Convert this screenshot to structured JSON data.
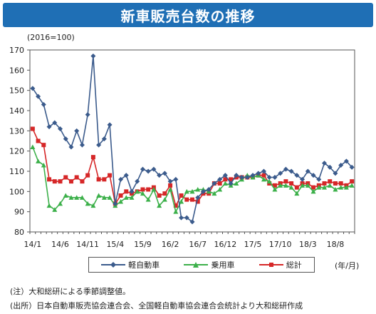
{
  "header": {
    "title": "新車販売台数の推移",
    "base_note": "(2016=100)",
    "title_color": "#1f6fb5"
  },
  "chart_data": {
    "type": "line",
    "ylim": [
      80,
      170
    ],
    "yticks": [
      80,
      90,
      100,
      110,
      120,
      130,
      140,
      150,
      160,
      170
    ],
    "x_tick_labels": [
      "14/1",
      "14/6",
      "14/11",
      "15/4",
      "15/9",
      "16/2",
      "16/7",
      "16/12",
      "17/5",
      "17/10",
      "18/3",
      "18/8"
    ],
    "x_start": "2014/1",
    "x_end": "2018/9",
    "x_unit": "(年/月)",
    "series": [
      {
        "name": "軽自動車",
        "color": "#3b5b8c",
        "marker": "diamond",
        "values": [
          151,
          147,
          143,
          132,
          134,
          131,
          126,
          122,
          130,
          123,
          138,
          167,
          123,
          126,
          133,
          94,
          106,
          108,
          100,
          105,
          111,
          110,
          111,
          108,
          109,
          105,
          106,
          87,
          87,
          85,
          97,
          100,
          101,
          104,
          106,
          108,
          104,
          108,
          107,
          107,
          108,
          109,
          110,
          107,
          107,
          109,
          111,
          110,
          108,
          106,
          110,
          108,
          106,
          114,
          112,
          109,
          113,
          115,
          112
        ]
      },
      {
        "name": "乗用車",
        "color": "#3cb04a",
        "marker": "triangle",
        "values": [
          122,
          115,
          113,
          93,
          91,
          94,
          98,
          97,
          97,
          97,
          94,
          93,
          98,
          97,
          97,
          93,
          95,
          97,
          97,
          100,
          99,
          96,
          101,
          93,
          96,
          101,
          90,
          95,
          100,
          100,
          101,
          101,
          100,
          99,
          101,
          104,
          103,
          104,
          106,
          108,
          107,
          108,
          106,
          105,
          101,
          103,
          103,
          102,
          99,
          103,
          103,
          100,
          102,
          102,
          103,
          101,
          102,
          102,
          103
        ]
      },
      {
        "name": "総計",
        "color": "#d62728",
        "marker": "square",
        "values": [
          131,
          125,
          123,
          106,
          105,
          105,
          107,
          105,
          107,
          105,
          108,
          117,
          106,
          106,
          108,
          94,
          98,
          100,
          99,
          100,
          101,
          101,
          102,
          98,
          99,
          103,
          93,
          98,
          96,
          96,
          95,
          99,
          99,
          104,
          104,
          106,
          106,
          107,
          107,
          107,
          107,
          108,
          108,
          104,
          103,
          104,
          105,
          104,
          102,
          104,
          104,
          102,
          103,
          104,
          105,
          104,
          104,
          103,
          105
        ]
      }
    ]
  },
  "notes": [
    "(注）大和総研による季節調整値。",
    "(出所）日本自動車販売協会連合会、全国軽自動車協会連合会統計より大和総研作成"
  ]
}
